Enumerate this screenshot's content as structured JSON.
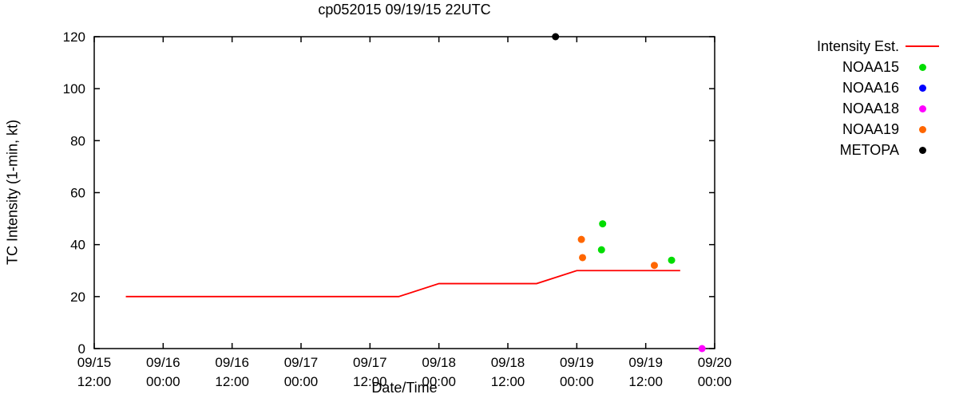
{
  "chart_data": {
    "type": "line",
    "title": "cp052015 09/19/15 22UTC",
    "xlabel": "Date/Time",
    "ylabel": "TC Intensity (1-min, kt)",
    "ylim": [
      0,
      120
    ],
    "yticks": [
      0,
      20,
      40,
      60,
      80,
      100,
      120
    ],
    "xlim_hours": [
      0,
      108
    ],
    "xticks": [
      {
        "hour": 0,
        "date": "09/15",
        "time": "12:00"
      },
      {
        "hour": 12,
        "date": "09/16",
        "time": "00:00"
      },
      {
        "hour": 24,
        "date": "09/16",
        "time": "12:00"
      },
      {
        "hour": 36,
        "date": "09/17",
        "time": "00:00"
      },
      {
        "hour": 48,
        "date": "09/17",
        "time": "12:00"
      },
      {
        "hour": 60,
        "date": "09/18",
        "time": "00:00"
      },
      {
        "hour": 72,
        "date": "09/18",
        "time": "12:00"
      },
      {
        "hour": 84,
        "date": "09/19",
        "time": "00:00"
      },
      {
        "hour": 96,
        "date": "09/19",
        "time": "12:00"
      },
      {
        "hour": 108,
        "date": "09/20",
        "time": "00:00"
      }
    ],
    "grid": false,
    "legend_position": "right-outside",
    "series": [
      {
        "name": "Intensity Est.",
        "kind": "line",
        "color": "#ff0000",
        "points": [
          [
            5.5,
            20
          ],
          [
            53,
            20
          ],
          [
            60,
            25
          ],
          [
            77,
            25
          ],
          [
            84,
            30
          ],
          [
            102,
            30
          ]
        ]
      },
      {
        "name": "NOAA15",
        "kind": "scatter",
        "color": "#00dd00",
        "points": [
          [
            88.5,
            48
          ],
          [
            88.3,
            38
          ],
          [
            100.5,
            34
          ]
        ]
      },
      {
        "name": "NOAA16",
        "kind": "scatter",
        "color": "#0000ff",
        "points": []
      },
      {
        "name": "NOAA18",
        "kind": "scatter",
        "color": "#ff00ff",
        "points": [
          [
            105.8,
            0
          ]
        ]
      },
      {
        "name": "NOAA19",
        "kind": "scatter",
        "color": "#ff6600",
        "points": [
          [
            84.8,
            42
          ],
          [
            85.0,
            35
          ],
          [
            97.5,
            32
          ]
        ]
      },
      {
        "name": "METOPA",
        "kind": "scatter",
        "color": "#000000",
        "points": [
          [
            80.3,
            120
          ]
        ]
      }
    ]
  }
}
